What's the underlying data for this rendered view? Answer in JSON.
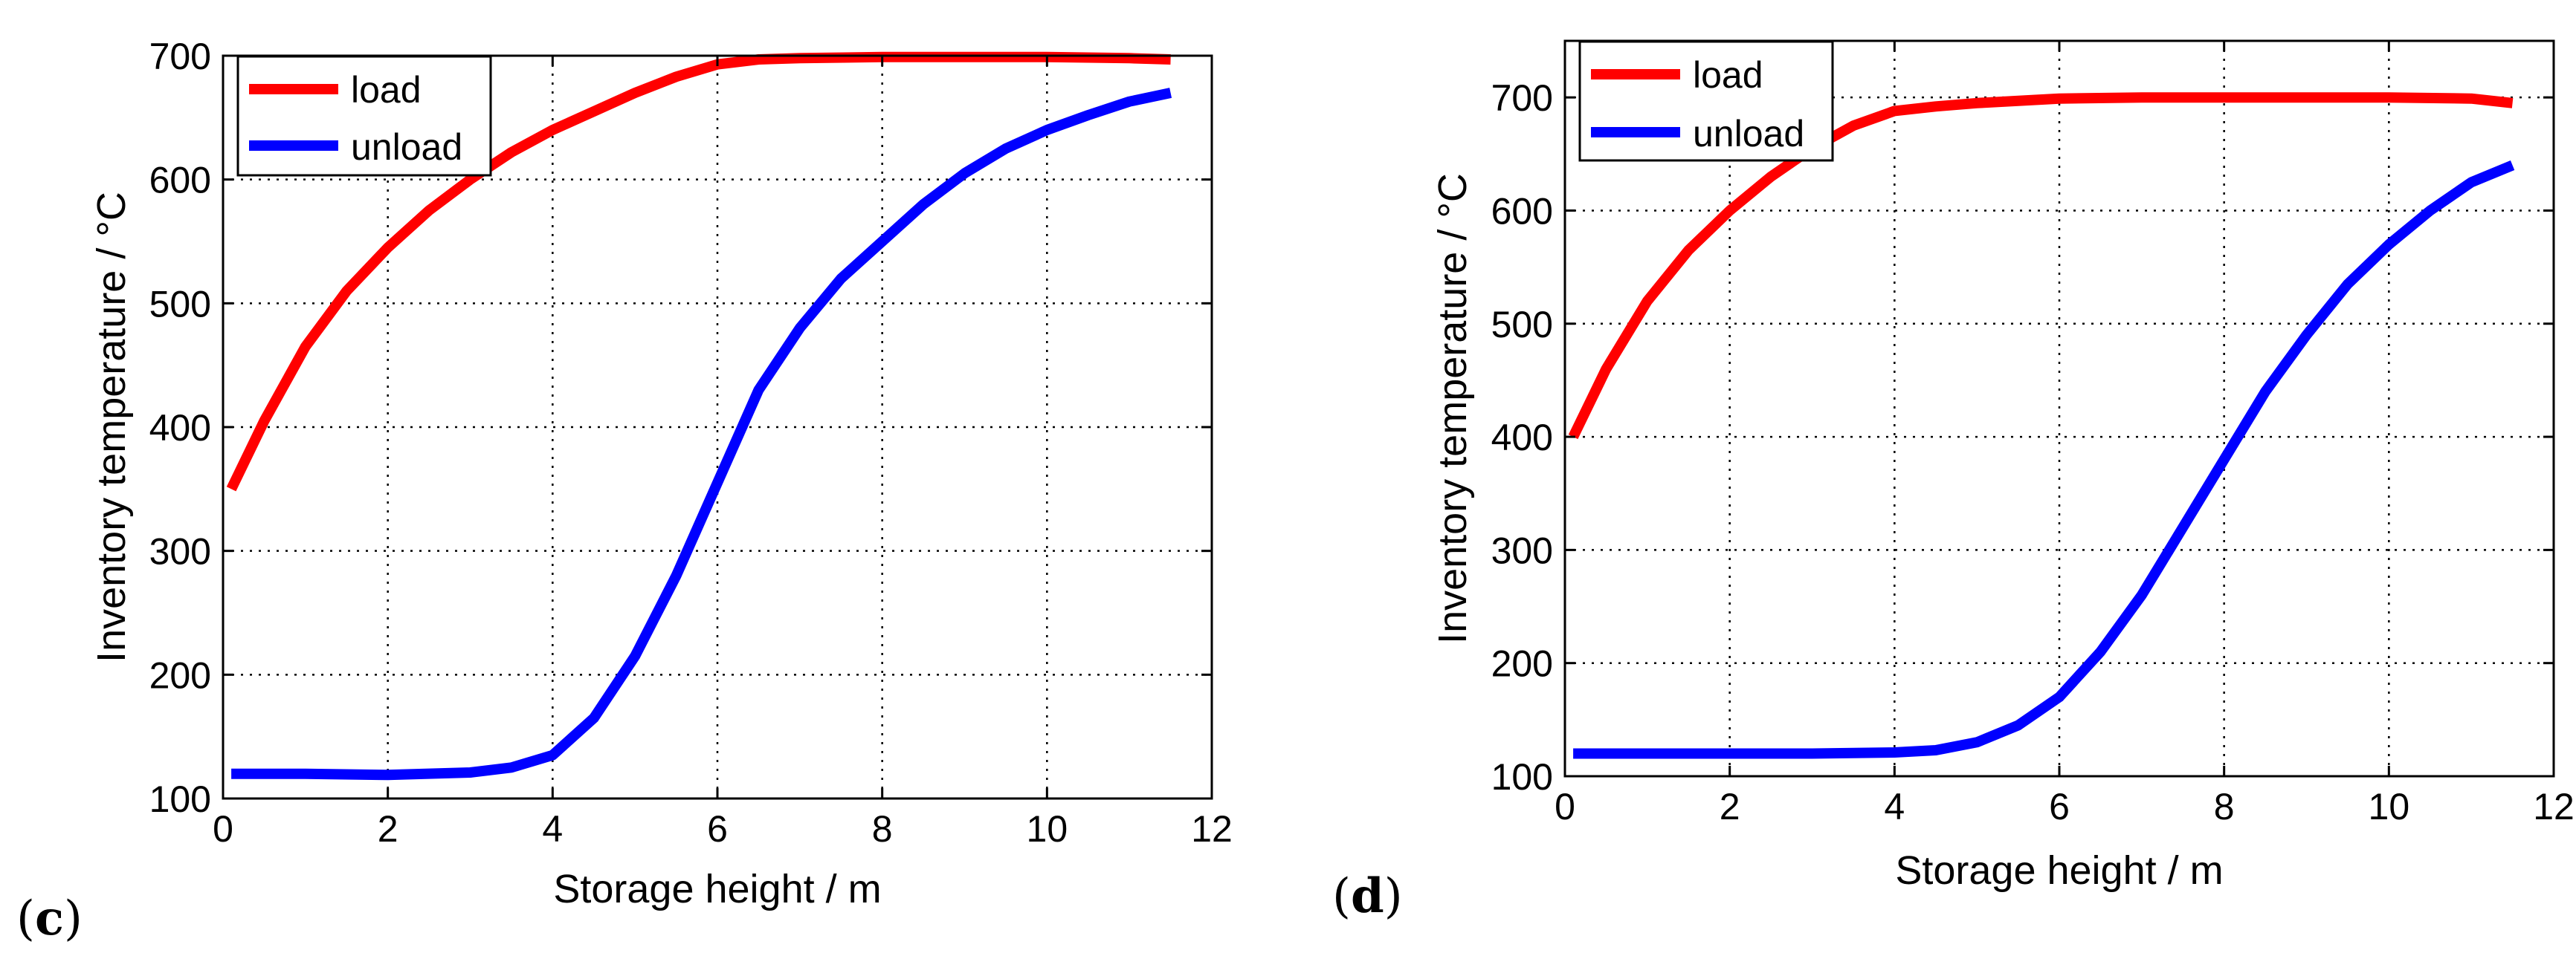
{
  "chart_data": [
    {
      "type": "line",
      "panel_label": "c",
      "title": "",
      "xlabel": "Storage height / m",
      "ylabel": "Inventory temperature / °C",
      "xlim": [
        0,
        12
      ],
      "ylim": [
        100,
        700
      ],
      "xticks": [
        0,
        2,
        4,
        6,
        8,
        10,
        12
      ],
      "yticks": [
        100,
        200,
        300,
        400,
        500,
        600,
        700
      ],
      "grid": true,
      "legend_position": "top-left",
      "series": [
        {
          "name": "load",
          "color": "#ff0000",
          "x": [
            0.1,
            0.5,
            1.0,
            1.5,
            2.0,
            2.5,
            3.0,
            3.5,
            4.0,
            4.5,
            5.0,
            5.5,
            6.0,
            6.5,
            7.0,
            8.0,
            9.0,
            10.0,
            11.0,
            11.5
          ],
          "y": [
            350,
            405,
            465,
            510,
            545,
            575,
            600,
            622,
            640,
            655,
            670,
            683,
            693,
            697,
            698,
            699,
            699,
            699,
            698,
            697
          ]
        },
        {
          "name": "unload",
          "color": "#0000ff",
          "x": [
            0.1,
            1.0,
            2.0,
            3.0,
            3.5,
            4.0,
            4.5,
            5.0,
            5.5,
            6.0,
            6.5,
            7.0,
            7.5,
            8.0,
            8.5,
            9.0,
            9.5,
            10.0,
            10.5,
            11.0,
            11.5
          ],
          "y": [
            120,
            120,
            119,
            121,
            125,
            135,
            165,
            215,
            280,
            355,
            430,
            480,
            520,
            550,
            580,
            605,
            625,
            640,
            652,
            663,
            670
          ]
        }
      ]
    },
    {
      "type": "line",
      "panel_label": "d",
      "title": "",
      "xlabel": "Storage height / m",
      "ylabel": "Inventory temperature / °C",
      "xlim": [
        0,
        12
      ],
      "ylim": [
        100,
        750
      ],
      "xticks": [
        0,
        2,
        4,
        6,
        8,
        10,
        12
      ],
      "yticks": [
        100,
        200,
        300,
        400,
        500,
        600,
        700
      ],
      "grid": true,
      "legend_position": "top-left",
      "series": [
        {
          "name": "load",
          "color": "#ff0000",
          "x": [
            0.1,
            0.5,
            1.0,
            1.5,
            2.0,
            2.5,
            3.0,
            3.5,
            4.0,
            4.5,
            5.0,
            6.0,
            7.0,
            8.0,
            9.0,
            10.0,
            11.0,
            11.5
          ],
          "y": [
            400,
            460,
            520,
            565,
            600,
            630,
            655,
            675,
            688,
            692,
            695,
            699,
            700,
            700,
            700,
            700,
            699,
            695
          ]
        },
        {
          "name": "unload",
          "color": "#0000ff",
          "x": [
            0.1,
            1.0,
            2.0,
            3.0,
            4.0,
            4.5,
            5.0,
            5.5,
            6.0,
            6.5,
            7.0,
            7.5,
            8.0,
            8.5,
            9.0,
            9.5,
            10.0,
            10.5,
            11.0,
            11.5
          ],
          "y": [
            120,
            120,
            120,
            120,
            121,
            123,
            130,
            145,
            170,
            210,
            260,
            320,
            380,
            440,
            490,
            535,
            570,
            600,
            625,
            640
          ]
        }
      ]
    }
  ]
}
